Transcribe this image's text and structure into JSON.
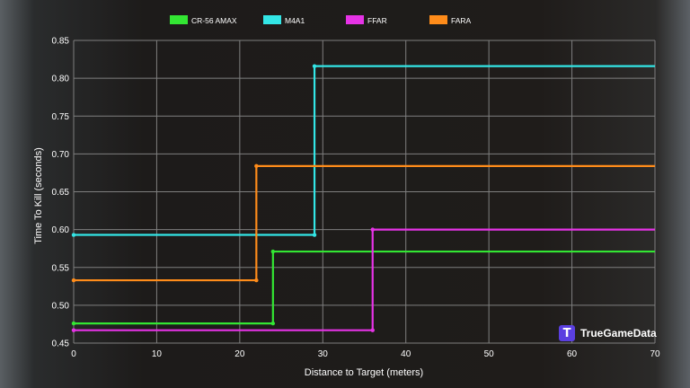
{
  "chart_data": {
    "type": "line",
    "step": true,
    "title": "",
    "xlabel": "Distance to Target (meters)",
    "ylabel": "Time To Kill (seconds)",
    "xlim": [
      0,
      70
    ],
    "ylim": [
      0.45,
      0.85
    ],
    "xticks": [
      0,
      10,
      20,
      30,
      40,
      50,
      60,
      70
    ],
    "yticks": [
      0.45,
      0.5,
      0.55,
      0.6,
      0.65,
      0.7,
      0.75,
      0.8,
      0.85
    ],
    "grid": true,
    "legend_position": "top",
    "series": [
      {
        "name": "CR-56 AMAX",
        "color": "#33e633",
        "points": [
          [
            0,
            0.476
          ],
          [
            24,
            0.476
          ],
          [
            24,
            0.571
          ],
          [
            70,
            0.571
          ]
        ]
      },
      {
        "name": "M4A1",
        "color": "#33e6e6",
        "points": [
          [
            0,
            0.593
          ],
          [
            29,
            0.593
          ],
          [
            29,
            0.816
          ],
          [
            70,
            0.816
          ]
        ]
      },
      {
        "name": "FFAR",
        "color": "#e633e6",
        "points": [
          [
            0,
            0.467
          ],
          [
            36,
            0.467
          ],
          [
            36,
            0.6
          ],
          [
            70,
            0.6
          ]
        ]
      },
      {
        "name": "FARA",
        "color": "#ff8c1a",
        "points": [
          [
            0,
            0.533
          ],
          [
            22,
            0.533
          ],
          [
            22,
            0.684
          ],
          [
            70,
            0.684
          ]
        ]
      }
    ]
  },
  "watermark": {
    "logo_glyph": "T",
    "text": "TrueGameData"
  }
}
